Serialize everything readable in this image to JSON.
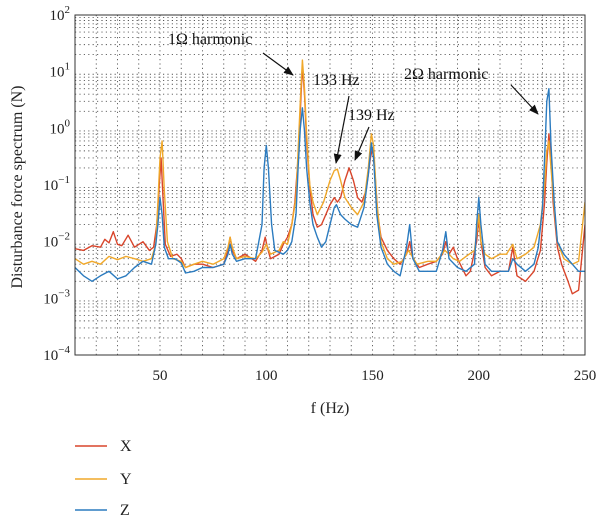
{
  "chart_data": {
    "type": "line",
    "title": "",
    "xlabel": "f (Hz)",
    "ylabel": "Disturbance force spectrum (N)",
    "xlim": [
      10,
      250
    ],
    "ylim": [
      0.0001,
      100
    ],
    "y_scale": "log",
    "grid": true,
    "x_ticks": [
      50,
      100,
      150,
      200,
      250
    ],
    "y_ticks": [
      {
        "value": 0.0001,
        "base": "10",
        "exp": "−4"
      },
      {
        "value": 0.001,
        "base": "10",
        "exp": "−3"
      },
      {
        "value": 0.01,
        "base": "10",
        "exp": "−2"
      },
      {
        "value": 0.1,
        "base": "10",
        "exp": "−1"
      },
      {
        "value": 1,
        "base": "10",
        "exp": "0"
      },
      {
        "value": 10,
        "base": "10",
        "exp": "1"
      },
      {
        "value": 100,
        "base": "10",
        "exp": "2"
      }
    ],
    "legend_position": "bottom-left, below plot",
    "series": [
      {
        "name": "X",
        "color": "#d9452b",
        "points": [
          [
            10,
            0.0075
          ],
          [
            14,
            0.007
          ],
          [
            18,
            0.0085
          ],
          [
            22,
            0.008
          ],
          [
            24,
            0.011
          ],
          [
            26,
            0.0095
          ],
          [
            28,
            0.015
          ],
          [
            30,
            0.009
          ],
          [
            32,
            0.0085
          ],
          [
            35,
            0.013
          ],
          [
            38,
            0.008
          ],
          [
            42,
            0.01
          ],
          [
            45,
            0.007
          ],
          [
            47,
            0.008
          ],
          [
            48.5,
            0.02
          ],
          [
            49.5,
            0.08
          ],
          [
            50.5,
            0.3
          ],
          [
            51.5,
            0.05
          ],
          [
            52.5,
            0.009
          ],
          [
            55,
            0.0055
          ],
          [
            58,
            0.006
          ],
          [
            60,
            0.005
          ],
          [
            62,
            0.0035
          ],
          [
            66,
            0.004
          ],
          [
            70,
            0.004
          ],
          [
            75,
            0.0035
          ],
          [
            80,
            0.004
          ],
          [
            82,
            0.007
          ],
          [
            83,
            0.012
          ],
          [
            84,
            0.007
          ],
          [
            86,
            0.005
          ],
          [
            90,
            0.006
          ],
          [
            95,
            0.0045
          ],
          [
            98,
            0.007
          ],
          [
            99.5,
            0.012
          ],
          [
            100.5,
            0.008
          ],
          [
            102,
            0.005
          ],
          [
            106,
            0.006
          ],
          [
            108,
            0.009
          ],
          [
            110,
            0.012
          ],
          [
            112,
            0.02
          ],
          [
            113.5,
            0.05
          ],
          [
            115,
            0.3
          ],
          [
            116,
            2.0
          ],
          [
            117,
            13
          ],
          [
            118,
            4
          ],
          [
            119,
            0.6
          ],
          [
            120.5,
            0.09
          ],
          [
            122,
            0.03
          ],
          [
            124,
            0.018
          ],
          [
            126,
            0.02
          ],
          [
            128,
            0.03
          ],
          [
            130,
            0.045
          ],
          [
            132,
            0.06
          ],
          [
            133.5,
            0.05
          ],
          [
            135,
            0.06
          ],
          [
            137,
            0.12
          ],
          [
            139,
            0.2
          ],
          [
            141,
            0.12
          ],
          [
            143,
            0.06
          ],
          [
            145,
            0.05
          ],
          [
            147,
            0.08
          ],
          [
            149,
            0.3
          ],
          [
            150,
            0.45
          ],
          [
            151,
            0.2
          ],
          [
            152.5,
            0.03
          ],
          [
            154,
            0.012
          ],
          [
            157,
            0.007
          ],
          [
            160,
            0.005
          ],
          [
            163,
            0.004
          ],
          [
            166,
            0.006
          ],
          [
            167.5,
            0.01
          ],
          [
            169,
            0.005
          ],
          [
            172,
            0.0035
          ],
          [
            176,
            0.004
          ],
          [
            180,
            0.0045
          ],
          [
            183,
            0.006
          ],
          [
            184.5,
            0.01
          ],
          [
            186,
            0.006
          ],
          [
            188,
            0.008
          ],
          [
            190,
            0.005
          ],
          [
            194,
            0.0025
          ],
          [
            196,
            0.003
          ],
          [
            199,
            0.01
          ],
          [
            200,
            0.025
          ],
          [
            201,
            0.01
          ],
          [
            203,
            0.0035
          ],
          [
            206,
            0.0025
          ],
          [
            210,
            0.003
          ],
          [
            214,
            0.003
          ],
          [
            216,
            0.008
          ],
          [
            218,
            0.0025
          ],
          [
            222,
            0.002
          ],
          [
            226,
            0.003
          ],
          [
            229,
            0.007
          ],
          [
            231,
            0.05
          ],
          [
            232,
            0.25
          ],
          [
            233,
            0.8
          ],
          [
            234,
            0.3
          ],
          [
            235,
            0.05
          ],
          [
            237,
            0.008
          ],
          [
            239,
            0.004
          ],
          [
            242,
            0.002
          ],
          [
            244,
            0.0012
          ],
          [
            247,
            0.0014
          ],
          [
            250,
            0.02
          ]
        ]
      },
      {
        "name": "Y",
        "color": "#f0a82a",
        "points": [
          [
            10,
            0.005
          ],
          [
            14,
            0.004
          ],
          [
            18,
            0.0045
          ],
          [
            22,
            0.004
          ],
          [
            26,
            0.0055
          ],
          [
            30,
            0.0048
          ],
          [
            34,
            0.0055
          ],
          [
            38,
            0.005
          ],
          [
            42,
            0.0045
          ],
          [
            46,
            0.005
          ],
          [
            48,
            0.009
          ],
          [
            49,
            0.05
          ],
          [
            50,
            0.3
          ],
          [
            51,
            0.6
          ],
          [
            52,
            0.08
          ],
          [
            53.5,
            0.01
          ],
          [
            56,
            0.005
          ],
          [
            60,
            0.0045
          ],
          [
            62,
            0.0035
          ],
          [
            66,
            0.004
          ],
          [
            70,
            0.0045
          ],
          [
            75,
            0.004
          ],
          [
            80,
            0.005
          ],
          [
            82,
            0.008
          ],
          [
            83,
            0.012
          ],
          [
            84,
            0.008
          ],
          [
            86,
            0.005
          ],
          [
            90,
            0.0055
          ],
          [
            95,
            0.005
          ],
          [
            98,
            0.0065
          ],
          [
            100,
            0.009
          ],
          [
            102,
            0.006
          ],
          [
            106,
            0.007
          ],
          [
            108,
            0.01
          ],
          [
            110,
            0.009
          ],
          [
            112,
            0.02
          ],
          [
            114,
            0.06
          ],
          [
            115,
            0.4
          ],
          [
            116,
            3
          ],
          [
            117,
            16
          ],
          [
            118,
            5
          ],
          [
            119,
            0.8
          ],
          [
            120.5,
            0.1
          ],
          [
            122,
            0.05
          ],
          [
            124,
            0.03
          ],
          [
            127,
            0.05
          ],
          [
            130,
            0.12
          ],
          [
            132,
            0.18
          ],
          [
            133.5,
            0.19
          ],
          [
            135,
            0.12
          ],
          [
            137,
            0.06
          ],
          [
            140,
            0.04
          ],
          [
            143,
            0.03
          ],
          [
            146,
            0.05
          ],
          [
            148,
            0.2
          ],
          [
            149.5,
            0.8
          ],
          [
            150.5,
            0.5
          ],
          [
            152,
            0.05
          ],
          [
            154,
            0.01
          ],
          [
            157,
            0.005
          ],
          [
            160,
            0.004
          ],
          [
            164,
            0.0045
          ],
          [
            167,
            0.007
          ],
          [
            168,
            0.006
          ],
          [
            171,
            0.004
          ],
          [
            176,
            0.0045
          ],
          [
            180,
            0.0045
          ],
          [
            184,
            0.007
          ],
          [
            186,
            0.006
          ],
          [
            188,
            0.005
          ],
          [
            191,
            0.0045
          ],
          [
            194,
            0.0055
          ],
          [
            198,
            0.007
          ],
          [
            200,
            0.03
          ],
          [
            201,
            0.01
          ],
          [
            203,
            0.006
          ],
          [
            206,
            0.005
          ],
          [
            210,
            0.006
          ],
          [
            213,
            0.006
          ],
          [
            216,
            0.009
          ],
          [
            218,
            0.005
          ],
          [
            222,
            0.006
          ],
          [
            226,
            0.008
          ],
          [
            229,
            0.02
          ],
          [
            231,
            0.1
          ],
          [
            232,
            0.4
          ],
          [
            233,
            0.6
          ],
          [
            234,
            0.2
          ],
          [
            235.5,
            0.04
          ],
          [
            237,
            0.01
          ],
          [
            240,
            0.005
          ],
          [
            244,
            0.004
          ],
          [
            247,
            0.0045
          ],
          [
            250,
            0.05
          ]
        ]
      },
      {
        "name": "Z",
        "color": "#2b7bbf",
        "points": [
          [
            10,
            0.0035
          ],
          [
            14,
            0.0025
          ],
          [
            18,
            0.002
          ],
          [
            22,
            0.0025
          ],
          [
            26,
            0.003
          ],
          [
            30,
            0.0022
          ],
          [
            34,
            0.0025
          ],
          [
            38,
            0.0035
          ],
          [
            42,
            0.0045
          ],
          [
            46,
            0.004
          ],
          [
            48,
            0.009
          ],
          [
            49,
            0.02
          ],
          [
            50,
            0.06
          ],
          [
            51,
            0.03
          ],
          [
            52,
            0.008
          ],
          [
            54,
            0.005
          ],
          [
            57,
            0.005
          ],
          [
            60,
            0.0042
          ],
          [
            62,
            0.0028
          ],
          [
            66,
            0.003
          ],
          [
            70,
            0.0035
          ],
          [
            75,
            0.0035
          ],
          [
            80,
            0.004
          ],
          [
            82,
            0.006
          ],
          [
            83,
            0.009
          ],
          [
            84,
            0.006
          ],
          [
            86,
            0.0045
          ],
          [
            90,
            0.005
          ],
          [
            95,
            0.005
          ],
          [
            98,
            0.02
          ],
          [
            99,
            0.2
          ],
          [
            100,
            0.5
          ],
          [
            101,
            0.2
          ],
          [
            102.5,
            0.02
          ],
          [
            104,
            0.007
          ],
          [
            108,
            0.006
          ],
          [
            110,
            0.007
          ],
          [
            112,
            0.01
          ],
          [
            114,
            0.03
          ],
          [
            115,
            0.2
          ],
          [
            116,
            1.0
          ],
          [
            117,
            2.3
          ],
          [
            118,
            0.9
          ],
          [
            119,
            0.2
          ],
          [
            120.5,
            0.05
          ],
          [
            122,
            0.02
          ],
          [
            124,
            0.012
          ],
          [
            126,
            0.008
          ],
          [
            128,
            0.01
          ],
          [
            130,
            0.02
          ],
          [
            132,
            0.04
          ],
          [
            133,
            0.045
          ],
          [
            135,
            0.03
          ],
          [
            137,
            0.025
          ],
          [
            140,
            0.02
          ],
          [
            143,
            0.018
          ],
          [
            146,
            0.04
          ],
          [
            148,
            0.15
          ],
          [
            149.5,
            0.55
          ],
          [
            150.5,
            0.3
          ],
          [
            152,
            0.03
          ],
          [
            154,
            0.008
          ],
          [
            157,
            0.004
          ],
          [
            160,
            0.003
          ],
          [
            163,
            0.0025
          ],
          [
            166,
            0.008
          ],
          [
            167.5,
            0.02
          ],
          [
            169,
            0.005
          ],
          [
            172,
            0.003
          ],
          [
            176,
            0.003
          ],
          [
            180,
            0.003
          ],
          [
            183,
            0.007
          ],
          [
            184.5,
            0.015
          ],
          [
            186,
            0.005
          ],
          [
            190,
            0.0035
          ],
          [
            194,
            0.003
          ],
          [
            198,
            0.004
          ],
          [
            199,
            0.02
          ],
          [
            200,
            0.06
          ],
          [
            201,
            0.02
          ],
          [
            203,
            0.004
          ],
          [
            206,
            0.003
          ],
          [
            210,
            0.003
          ],
          [
            214,
            0.003
          ],
          [
            216,
            0.005
          ],
          [
            218,
            0.004
          ],
          [
            222,
            0.003
          ],
          [
            226,
            0.004
          ],
          [
            228,
            0.008
          ],
          [
            230,
            0.04
          ],
          [
            231,
            0.3
          ],
          [
            232,
            3
          ],
          [
            233,
            5
          ],
          [
            234,
            0.5
          ],
          [
            235.5,
            0.05
          ],
          [
            237,
            0.01
          ],
          [
            240,
            0.006
          ],
          [
            244,
            0.004
          ],
          [
            247,
            0.003
          ],
          [
            250,
            0.003
          ]
        ]
      }
    ],
    "annotations": [
      {
        "id": "one-omega",
        "text": "1Ω harmonic",
        "x": 117,
        "y": 16
      },
      {
        "id": "f133",
        "text": "133 Hz",
        "x": 133.5,
        "y": 0.19
      },
      {
        "id": "f139",
        "text": "139 Hz",
        "x": 139,
        "y": 0.2
      },
      {
        "id": "two-omega",
        "text": "2Ω harmonic",
        "x": 233,
        "y": 5
      }
    ]
  }
}
